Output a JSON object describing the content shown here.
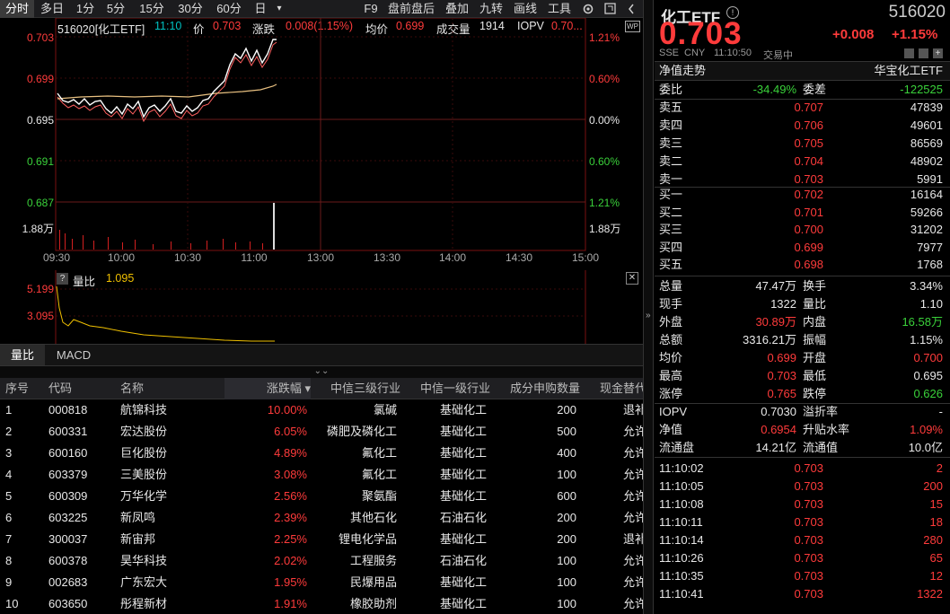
{
  "toolbar": {
    "periods": [
      "分时",
      "多日",
      "1分",
      "5分",
      "15分",
      "30分",
      "60分",
      "日"
    ],
    "more": "▾",
    "tools": [
      "F9",
      "盘前盘后",
      "叠加",
      "九转",
      "画线",
      "工具"
    ]
  },
  "chart": {
    "code_name": "516020[化工ETF]",
    "time": "11:10",
    "price_label": "价",
    "price": "0.703",
    "change_label": "涨跌",
    "change": "0.008(1.15%)",
    "avg_label": "均价",
    "avg": "0.699",
    "volume_label": "成交量",
    "volume": "1914",
    "iopv_label": "IOPV",
    "iopv": "0.70...",
    "wp_badge": "WP",
    "y_left": [
      "0.703",
      "0.699",
      "0.695",
      "0.691",
      "0.687"
    ],
    "y_right": [
      "1.21%",
      "0.60%",
      "0.00%",
      "0.60%",
      "1.21%"
    ],
    "vol_left": "1.88万",
    "vol_right": "1.88万",
    "x_ticks": [
      "09:30",
      "10:00",
      "10:30",
      "11:00",
      "13:00",
      "13:30",
      "14:00",
      "14:30",
      "15:00"
    ]
  },
  "sub": {
    "help": "?",
    "label": "量比",
    "value": "1.095",
    "y": [
      "5.199",
      "3.095"
    ],
    "close": "✕"
  },
  "tabs": [
    "量比",
    "MACD"
  ],
  "table": {
    "headers": [
      "序号",
      "代码",
      "名称",
      "涨跌幅 ▾",
      "中信三级行业",
      "中信一级行业",
      "成分申购数量",
      "现金替代"
    ],
    "rows": [
      [
        "1",
        "000818",
        "航锦科技",
        "10.00%",
        "氯碱",
        "基础化工",
        "200",
        "退补"
      ],
      [
        "2",
        "600331",
        "宏达股份",
        "6.05%",
        "磷肥及磷化工",
        "基础化工",
        "500",
        "允许"
      ],
      [
        "3",
        "600160",
        "巨化股份",
        "4.89%",
        "氟化工",
        "基础化工",
        "400",
        "允许"
      ],
      [
        "4",
        "603379",
        "三美股份",
        "3.08%",
        "氟化工",
        "基础化工",
        "100",
        "允许"
      ],
      [
        "5",
        "600309",
        "万华化学",
        "2.56%",
        "聚氨酯",
        "基础化工",
        "600",
        "允许"
      ],
      [
        "6",
        "603225",
        "新凤鸣",
        "2.39%",
        "其他石化",
        "石油石化",
        "200",
        "允许"
      ],
      [
        "7",
        "300037",
        "新宙邦",
        "2.25%",
        "锂电化学品",
        "基础化工",
        "200",
        "退补"
      ],
      [
        "8",
        "600378",
        "昊华科技",
        "2.02%",
        "工程服务",
        "石油石化",
        "100",
        "允许"
      ],
      [
        "9",
        "002683",
        "广东宏大",
        "1.95%",
        "民爆用品",
        "基础化工",
        "100",
        "允许"
      ],
      [
        "10",
        "603650",
        "彤程新材",
        "1.91%",
        "橡胶助剂",
        "基础化工",
        "100",
        "允许"
      ]
    ]
  },
  "quote": {
    "name": "化工ETF",
    "code": "516020",
    "price": "0.703",
    "change": "+0.008",
    "pct": "+1.15%",
    "market": "SSE",
    "currency": "CNY",
    "time": "11:10:50",
    "status": "交易中",
    "nav_label": "净值走势",
    "company": "华宝化工ETF",
    "ratio_label": "委比",
    "ratio": "-34.49%",
    "diff_label": "委差",
    "diff": "-122525"
  },
  "sell": [
    [
      "卖五",
      "0.707",
      "47839"
    ],
    [
      "卖四",
      "0.706",
      "49601"
    ],
    [
      "卖三",
      "0.705",
      "86569"
    ],
    [
      "卖二",
      "0.704",
      "48902"
    ],
    [
      "卖一",
      "0.703",
      "5991"
    ]
  ],
  "buy": [
    [
      "买一",
      "0.702",
      "16164"
    ],
    [
      "买二",
      "0.701",
      "59266"
    ],
    [
      "买三",
      "0.700",
      "31202"
    ],
    [
      "买四",
      "0.699",
      "7977"
    ],
    [
      "买五",
      "0.698",
      "1768"
    ]
  ],
  "stats": [
    [
      "总量",
      "47.47万",
      "换手",
      "3.34%"
    ],
    [
      "现手",
      "1322",
      "量比",
      "1.10"
    ],
    [
      "外盘",
      "30.89万",
      "内盘",
      "16.58万"
    ],
    [
      "总额",
      "3316.21万",
      "振幅",
      "1.15%"
    ],
    [
      "均价",
      "0.699",
      "开盘",
      "0.700"
    ],
    [
      "最高",
      "0.703",
      "最低",
      "0.695"
    ],
    [
      "涨停",
      "0.765",
      "跌停",
      "0.626"
    ]
  ],
  "iopv": [
    [
      "IOPV",
      "0.7030",
      "溢折率",
      "-"
    ],
    [
      "净值",
      "0.6954",
      "升贴水率",
      "1.09%"
    ],
    [
      "流通盘",
      "14.21亿",
      "流通值",
      "10.0亿"
    ]
  ],
  "ticks": [
    [
      "11:10:02",
      "0.703",
      "2"
    ],
    [
      "11:10:05",
      "0.703",
      "200"
    ],
    [
      "11:10:08",
      "0.703",
      "15"
    ],
    [
      "11:10:11",
      "0.703",
      "18"
    ],
    [
      "11:10:14",
      "0.703",
      "280"
    ],
    [
      "11:10:26",
      "0.703",
      "65"
    ],
    [
      "11:10:35",
      "0.703",
      "12"
    ],
    [
      "11:10:41",
      "0.703",
      "1322"
    ]
  ],
  "colors": {
    "up": "#ff3b3b",
    "down": "#3ad13a",
    "avg": "#f0c000",
    "price": "#ffffff"
  }
}
